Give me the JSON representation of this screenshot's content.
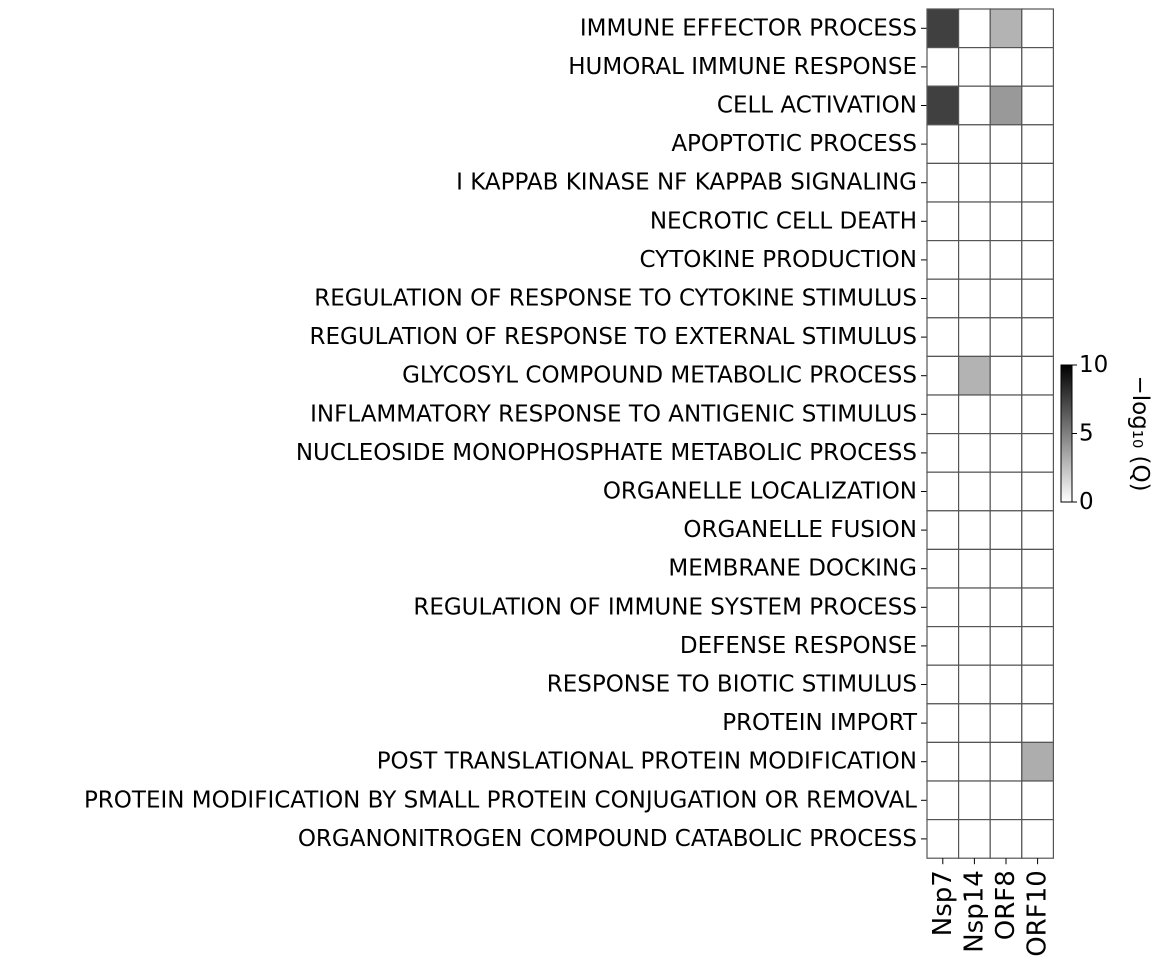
{
  "chart_data": {
    "type": "heatmap",
    "title": "",
    "rows": [
      "IMMUNE EFFECTOR PROCESS",
      "HUMORAL IMMUNE RESPONSE",
      "CELL ACTIVATION",
      "APOPTOTIC PROCESS",
      "I KAPPAB KINASE NF KAPPAB SIGNALING",
      "NECROTIC CELL DEATH",
      "CYTOKINE PRODUCTION",
      "REGULATION OF RESPONSE TO CYTOKINE STIMULUS",
      "REGULATION OF RESPONSE TO EXTERNAL STIMULUS",
      "GLYCOSYL COMPOUND METABOLIC PROCESS",
      "INFLAMMATORY RESPONSE TO ANTIGENIC STIMULUS",
      "NUCLEOSIDE MONOPHOSPHATE METABOLIC PROCESS",
      "ORGANELLE LOCALIZATION",
      "ORGANELLE FUSION",
      "MEMBRANE DOCKING",
      "REGULATION OF IMMUNE SYSTEM PROCESS",
      "DEFENSE RESPONSE",
      "RESPONSE TO BIOTIC STIMULUS",
      "PROTEIN IMPORT",
      "POST TRANSLATIONAL PROTEIN MODIFICATION",
      "PROTEIN MODIFICATION BY SMALL PROTEIN CONJUGATION OR REMOVAL",
      "ORGANONITROGEN COMPOUND CATABOLIC PROCESS"
    ],
    "columns": [
      "Nsp7",
      "Nsp14",
      "ORF8",
      "ORF10"
    ],
    "values": [
      [
        7.5,
        0,
        3.0,
        0
      ],
      [
        0,
        0,
        0,
        0
      ],
      [
        7.5,
        0,
        4.0,
        0
      ],
      [
        0,
        0,
        0,
        0
      ],
      [
        0,
        0,
        0,
        0
      ],
      [
        0,
        0,
        0,
        0
      ],
      [
        0,
        0,
        0,
        0
      ],
      [
        0,
        0,
        0,
        0
      ],
      [
        0,
        0,
        0,
        0
      ],
      [
        0,
        3.0,
        0,
        0
      ],
      [
        0,
        0,
        0,
        0
      ],
      [
        0,
        0,
        0,
        0
      ],
      [
        0,
        0,
        0,
        0
      ],
      [
        0,
        0,
        0,
        0
      ],
      [
        0,
        0,
        0,
        0
      ],
      [
        0,
        0,
        0,
        0
      ],
      [
        0,
        0,
        0,
        0
      ],
      [
        0,
        0,
        0,
        0
      ],
      [
        0,
        0,
        0,
        0
      ],
      [
        0,
        0,
        0,
        3.2
      ],
      [
        0,
        0,
        0,
        0
      ],
      [
        0,
        0,
        0,
        0
      ]
    ],
    "colorbar": {
      "label": "−log₁₀ (Q)",
      "range": [
        0,
        10
      ],
      "ticks": [
        "0",
        "5",
        "10"
      ],
      "colors": [
        "#ffffff",
        "#000000"
      ]
    },
    "cell_border_color": "#555555",
    "colorbar_position": "right"
  }
}
